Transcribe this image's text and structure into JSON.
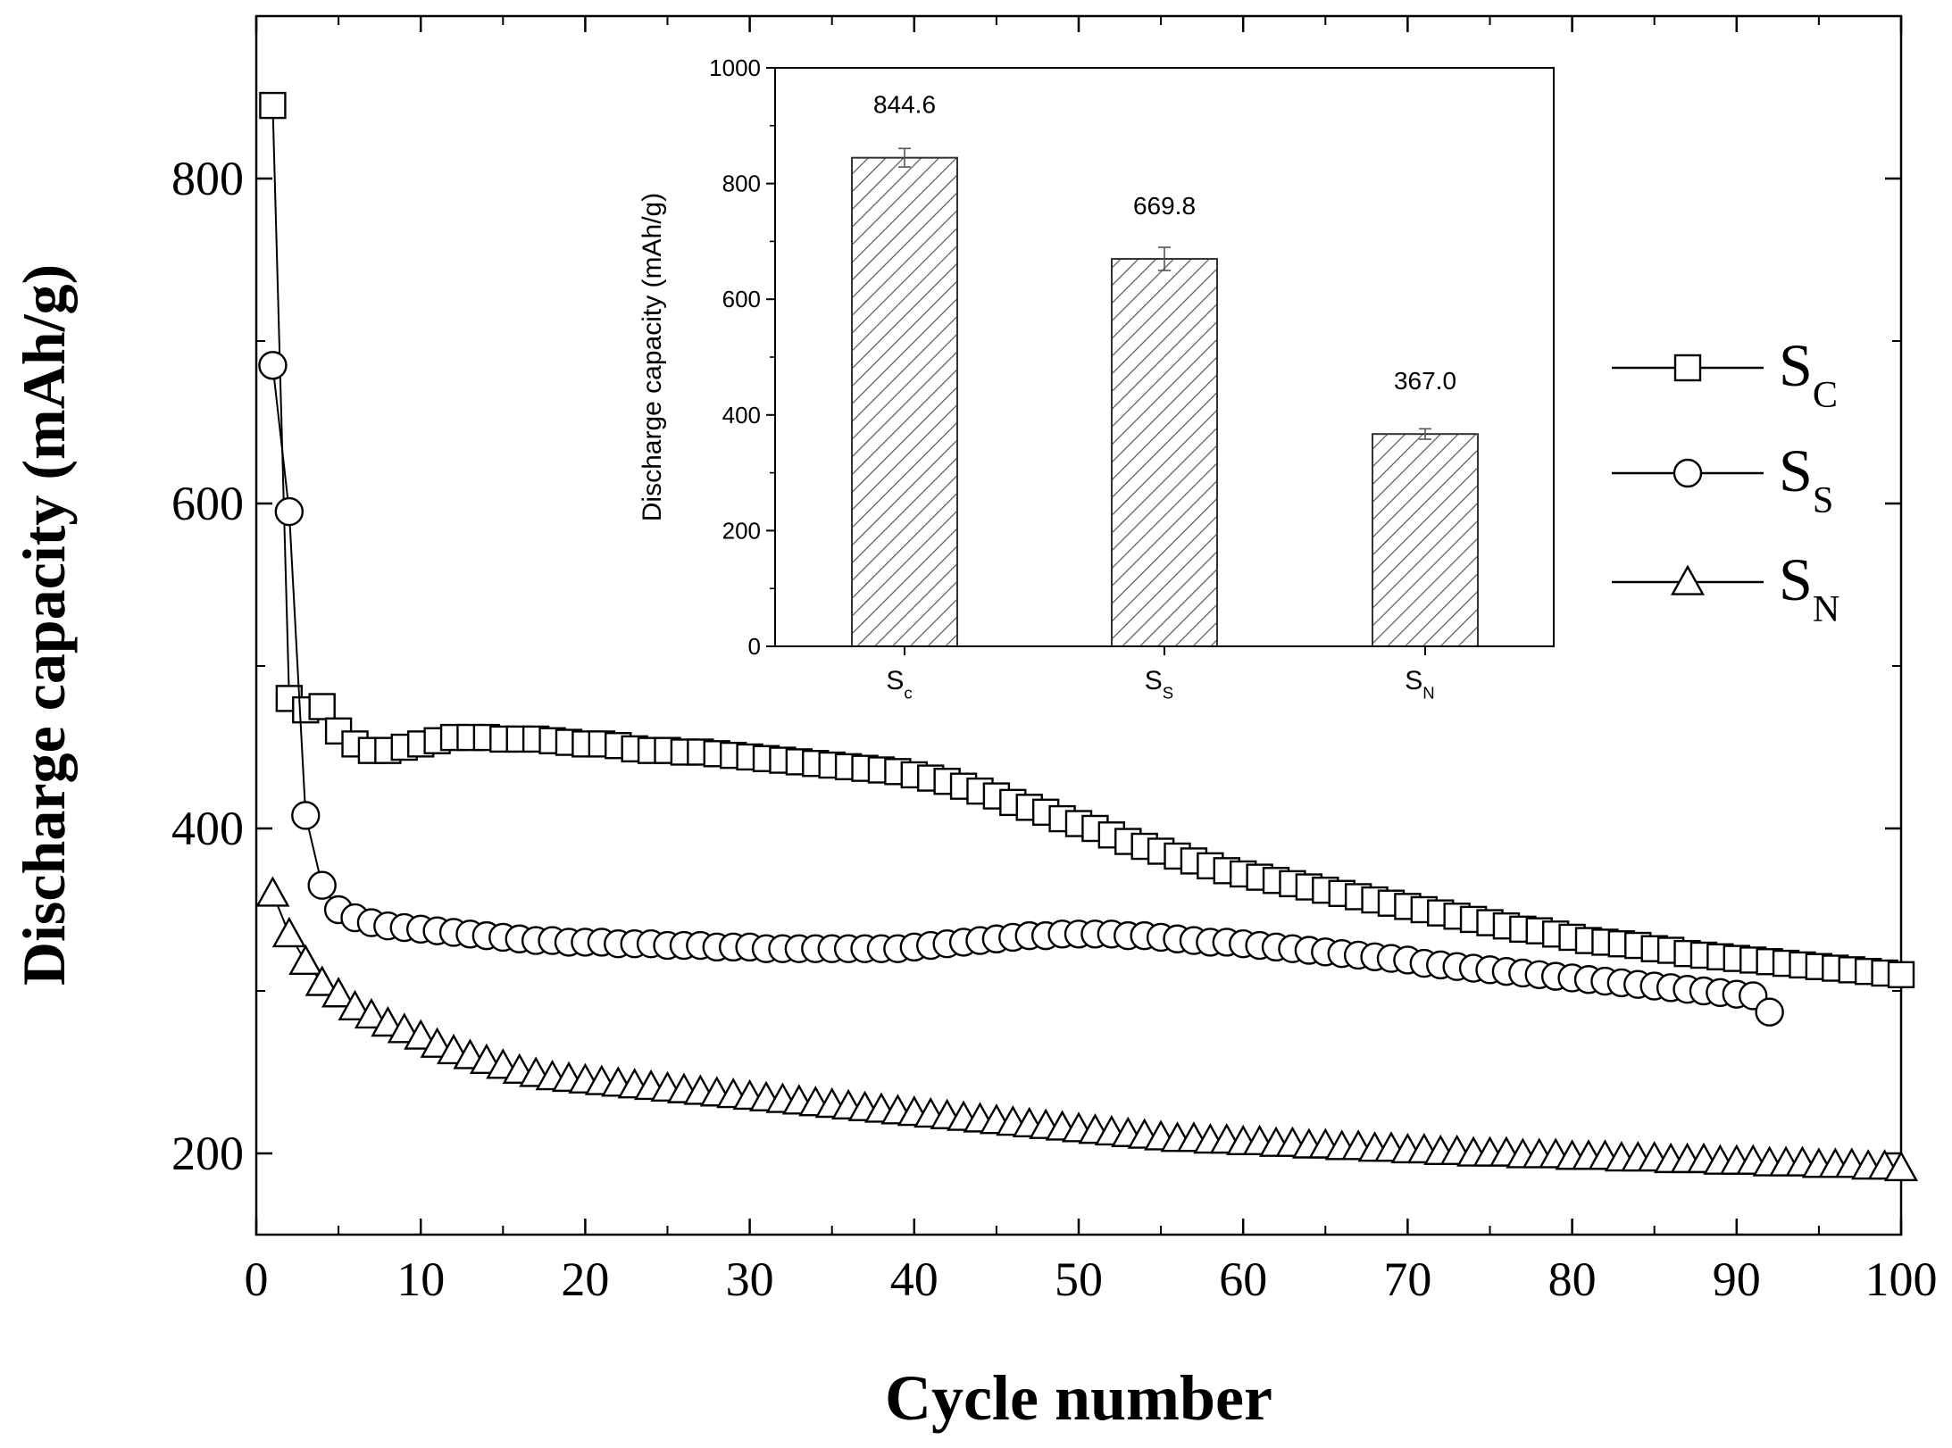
{
  "chart_data": [
    {
      "type": "scatter",
      "title": "",
      "xlabel": "Cycle number",
      "ylabel": "Discharge capacity (mAh/g)",
      "xlim": [
        0,
        100
      ],
      "ylim": [
        150,
        900
      ],
      "x_ticks": [
        "0",
        "10",
        "20",
        "30",
        "40",
        "50",
        "60",
        "70",
        "80",
        "90",
        "100"
      ],
      "y_ticks": [
        "200",
        "400",
        "600",
        "800"
      ],
      "legend_position": "right",
      "series": [
        {
          "name_main": "S",
          "name_sub": "C",
          "marker": "square",
          "x": [
            1,
            2,
            3,
            4,
            5,
            6,
            7,
            8,
            9,
            10,
            11,
            12,
            13,
            14,
            15,
            16,
            17,
            18,
            19,
            20,
            21,
            22,
            23,
            24,
            25,
            26,
            27,
            28,
            29,
            30,
            31,
            32,
            33,
            34,
            35,
            36,
            37,
            38,
            39,
            40,
            41,
            42,
            43,
            44,
            45,
            46,
            47,
            48,
            49,
            50,
            51,
            52,
            53,
            54,
            55,
            56,
            57,
            58,
            59,
            60,
            61,
            62,
            63,
            64,
            65,
            66,
            67,
            68,
            69,
            70,
            71,
            72,
            73,
            74,
            75,
            76,
            77,
            78,
            79,
            80,
            81,
            82,
            83,
            84,
            85,
            86,
            87,
            88,
            89,
            90,
            91,
            92,
            93,
            94,
            95,
            96,
            97,
            98,
            99,
            100
          ],
          "values": [
            845,
            480,
            473,
            475,
            460,
            452,
            448,
            448,
            450,
            452,
            454,
            456,
            456,
            456,
            455,
            455,
            455,
            454,
            453,
            452,
            452,
            451,
            449,
            448,
            448,
            447,
            447,
            446,
            445,
            444,
            443,
            442,
            441,
            440,
            439,
            438,
            437,
            436,
            435,
            433,
            431,
            429,
            426,
            423,
            420,
            416,
            413,
            410,
            406,
            403,
            400,
            396,
            392,
            389,
            386,
            383,
            380,
            377,
            374,
            372,
            370,
            368,
            366,
            364,
            362,
            360,
            358,
            356,
            354,
            352,
            350,
            348,
            346,
            344,
            342,
            340,
            338,
            337,
            335,
            333,
            331,
            330,
            329,
            328,
            326,
            325,
            323,
            322,
            321,
            320,
            319,
            318,
            317,
            316,
            315,
            314,
            313,
            312,
            311,
            310
          ]
        },
        {
          "name_main": "S",
          "name_sub": "S",
          "marker": "circle",
          "x": [
            1,
            2,
            3,
            4,
            5,
            6,
            7,
            8,
            9,
            10,
            11,
            12,
            13,
            14,
            15,
            16,
            17,
            18,
            19,
            20,
            21,
            22,
            23,
            24,
            25,
            26,
            27,
            28,
            29,
            30,
            31,
            32,
            33,
            34,
            35,
            36,
            37,
            38,
            39,
            40,
            41,
            42,
            43,
            44,
            45,
            46,
            47,
            48,
            49,
            50,
            51,
            52,
            53,
            54,
            55,
            56,
            57,
            58,
            59,
            60,
            61,
            62,
            63,
            64,
            65,
            66,
            67,
            68,
            69,
            70,
            71,
            72,
            73,
            74,
            75,
            76,
            77,
            78,
            79,
            80,
            81,
            82,
            83,
            84,
            85,
            86,
            87,
            88,
            89,
            90,
            91,
            92
          ],
          "values": [
            685,
            595,
            408,
            365,
            350,
            345,
            342,
            340,
            339,
            338,
            337,
            336,
            335,
            334,
            333,
            332,
            331,
            331,
            330,
            330,
            330,
            329,
            329,
            329,
            328,
            328,
            328,
            327,
            327,
            327,
            326,
            326,
            326,
            326,
            326,
            326,
            326,
            326,
            326,
            327,
            328,
            329,
            330,
            331,
            332,
            333,
            334,
            334,
            335,
            335,
            335,
            335,
            334,
            334,
            333,
            332,
            331,
            330,
            330,
            329,
            328,
            327,
            326,
            325,
            324,
            323,
            322,
            321,
            320,
            319,
            317,
            316,
            315,
            314,
            313,
            312,
            311,
            310,
            309,
            308,
            307,
            306,
            305,
            304,
            303,
            302,
            301,
            300,
            299,
            298,
            297,
            287
          ]
        },
        {
          "name_main": "S",
          "name_sub": "N",
          "marker": "triangle",
          "x": [
            1,
            2,
            3,
            4,
            5,
            6,
            7,
            8,
            9,
            10,
            11,
            12,
            13,
            14,
            15,
            16,
            17,
            18,
            19,
            20,
            21,
            22,
            23,
            24,
            25,
            26,
            27,
            28,
            29,
            30,
            31,
            32,
            33,
            34,
            35,
            36,
            37,
            38,
            39,
            40,
            41,
            42,
            43,
            44,
            45,
            46,
            47,
            48,
            49,
            50,
            51,
            52,
            53,
            54,
            55,
            56,
            57,
            58,
            59,
            60,
            61,
            62,
            63,
            64,
            65,
            66,
            67,
            68,
            69,
            70,
            71,
            72,
            73,
            74,
            75,
            76,
            77,
            78,
            79,
            80,
            81,
            82,
            83,
            84,
            85,
            86,
            87,
            88,
            89,
            90,
            91,
            92,
            93,
            94,
            95,
            96,
            97,
            98,
            99,
            100
          ],
          "values": [
            360,
            335,
            318,
            305,
            298,
            290,
            285,
            280,
            276,
            272,
            267,
            263,
            260,
            257,
            254,
            251,
            249,
            247,
            246,
            245,
            244,
            243,
            242,
            241,
            240,
            239,
            238,
            237,
            236,
            235,
            234,
            233,
            232,
            231,
            230,
            229,
            228,
            227,
            226,
            225,
            224,
            223,
            222,
            221,
            220,
            219,
            218,
            217,
            216,
            215,
            214,
            213,
            212,
            211,
            210,
            209,
            209,
            208,
            208,
            207,
            207,
            206,
            206,
            205,
            205,
            204,
            204,
            203,
            203,
            202,
            202,
            201,
            201,
            200,
            200,
            200,
            199,
            199,
            199,
            198,
            198,
            198,
            197,
            197,
            197,
            196,
            196,
            196,
            195,
            195,
            195,
            194,
            194,
            194,
            193,
            193,
            193,
            192,
            192,
            191
          ]
        }
      ]
    },
    {
      "type": "bar",
      "title": "",
      "xlabel": "",
      "ylabel": "Discharge capacity (mAh/g)",
      "ylim": [
        0,
        1000
      ],
      "y_ticks": [
        "0",
        "200",
        "400",
        "600",
        "800",
        "1000"
      ],
      "categories": [
        {
          "main": "S",
          "sub": "c"
        },
        {
          "main": "S",
          "sub": "S"
        },
        {
          "main": "S",
          "sub": "N"
        }
      ],
      "values": [
        844.6,
        669.8,
        367.0
      ],
      "value_labels": [
        "844.6",
        "669.8",
        "367.0"
      ],
      "error": [
        16,
        20,
        9
      ],
      "pattern": "hatched",
      "bar_color": "#ffffff",
      "hatch_color": "#555555"
    }
  ]
}
